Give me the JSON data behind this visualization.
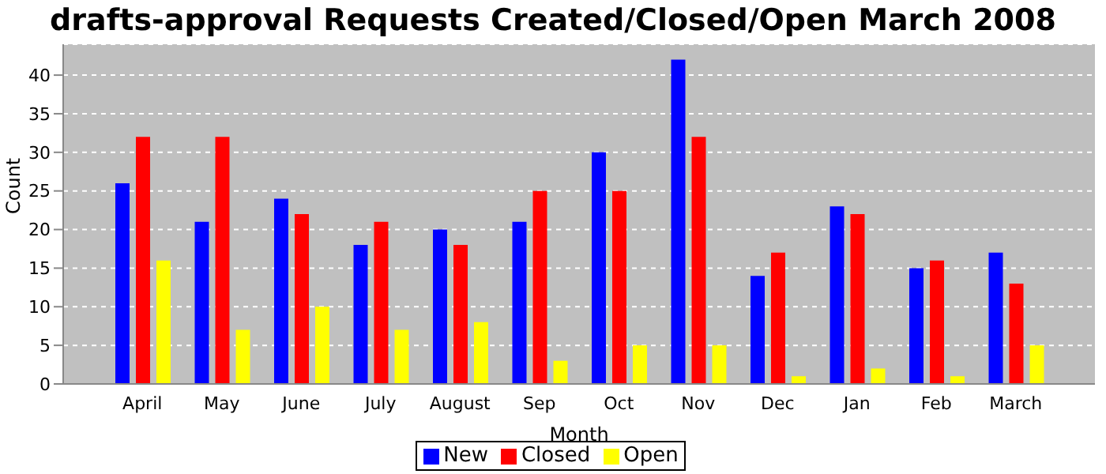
{
  "chart_data": {
    "type": "bar",
    "title": "drafts-approval Requests Created/Closed/Open March 2008",
    "xlabel": "Month",
    "ylabel": "Count",
    "categories": [
      "April",
      "May",
      "June",
      "July",
      "August",
      "Sep",
      "Oct",
      "Nov",
      "Dec",
      "Jan",
      "Feb",
      "March"
    ],
    "series": [
      {
        "name": "New",
        "color": "#0000ff",
        "values": [
          26,
          21,
          24,
          18,
          20,
          21,
          30,
          42,
          14,
          23,
          15,
          17
        ]
      },
      {
        "name": "Closed",
        "color": "#ff0000",
        "values": [
          32,
          32,
          22,
          21,
          18,
          25,
          25,
          32,
          17,
          22,
          16,
          13
        ]
      },
      {
        "name": "Open",
        "color": "#ffff00",
        "values": [
          16,
          7,
          10,
          7,
          8,
          3,
          5,
          5,
          1,
          2,
          1,
          5
        ]
      }
    ],
    "ylim": [
      0,
      44
    ],
    "yticks": [
      0,
      5,
      10,
      15,
      20,
      25,
      30,
      35,
      40
    ],
    "grid": "y",
    "legend": "bottom"
  }
}
